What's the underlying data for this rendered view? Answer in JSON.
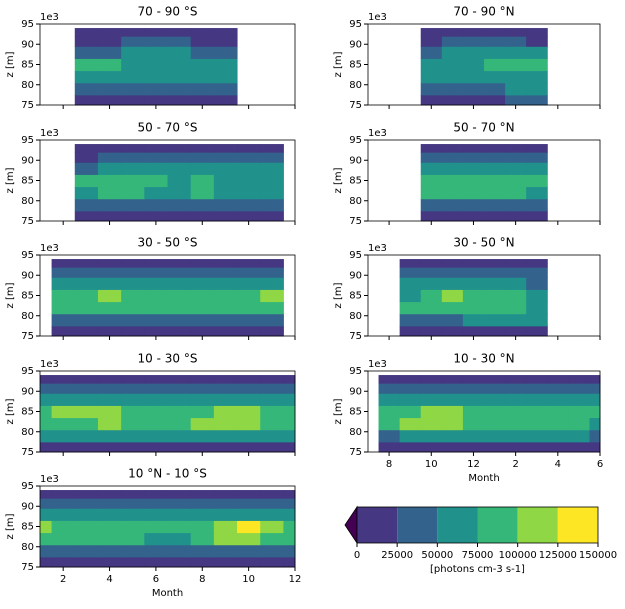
{
  "chart_data": [
    {
      "type": "contour",
      "title": "70 - 90 °S",
      "ylabel": "z [m]",
      "y_offset": "1e3",
      "xlim": [
        1,
        12
      ],
      "ylim": [
        75,
        95
      ],
      "xticks": [
        2,
        4,
        6,
        8,
        10,
        12
      ],
      "yticks": [
        75,
        80,
        85,
        90,
        95
      ],
      "x": [
        3,
        4,
        5,
        6,
        7,
        8,
        9
      ],
      "z": [
        76,
        79,
        82,
        85,
        88,
        91,
        93
      ],
      "values": [
        [
          10000,
          10000,
          10000,
          10000,
          10000,
          10000,
          10000
        ],
        [
          40000,
          40000,
          40000,
          40000,
          40000,
          40000,
          40000
        ],
        [
          60000,
          60000,
          60000,
          60000,
          60000,
          60000,
          60000
        ],
        [
          90000,
          90000,
          60000,
          60000,
          60000,
          60000,
          60000
        ],
        [
          40000,
          40000,
          60000,
          60000,
          60000,
          40000,
          40000
        ],
        [
          10000,
          10000,
          40000,
          40000,
          40000,
          10000,
          10000
        ],
        [
          10000,
          10000,
          10000,
          10000,
          10000,
          10000,
          10000
        ]
      ]
    },
    {
      "type": "contour",
      "title": "70 - 90 °N",
      "ylabel": "z [m]",
      "y_offset": "1e3",
      "xlim": [
        7,
        18
      ],
      "ylim": [
        75,
        95
      ],
      "xticks": [
        8,
        10,
        12,
        14,
        16,
        18
      ],
      "yticks": [
        75,
        80,
        85,
        90,
        95
      ],
      "x": [
        10,
        11,
        12,
        13,
        14,
        15
      ],
      "z": [
        76,
        79,
        82,
        85,
        88,
        91,
        93
      ],
      "values": [
        [
          10000,
          10000,
          10000,
          10000,
          40000,
          40000
        ],
        [
          40000,
          40000,
          40000,
          40000,
          60000,
          60000
        ],
        [
          60000,
          60000,
          60000,
          60000,
          60000,
          60000
        ],
        [
          60000,
          60000,
          60000,
          90000,
          90000,
          90000
        ],
        [
          40000,
          60000,
          60000,
          60000,
          60000,
          60000
        ],
        [
          10000,
          40000,
          40000,
          40000,
          40000,
          10000
        ],
        [
          10000,
          10000,
          10000,
          10000,
          10000,
          10000
        ]
      ]
    },
    {
      "type": "contour",
      "title": "50 - 70 °S",
      "ylabel": "z [m]",
      "y_offset": "1e3",
      "xlim": [
        1,
        12
      ],
      "ylim": [
        75,
        95
      ],
      "xticks": [
        2,
        4,
        6,
        8,
        10,
        12
      ],
      "yticks": [
        75,
        80,
        85,
        90,
        95
      ],
      "x": [
        3,
        4,
        5,
        6,
        7,
        8,
        9,
        10,
        11
      ],
      "z": [
        76,
        79,
        82,
        85,
        88,
        91,
        93
      ],
      "values": [
        [
          10000,
          10000,
          10000,
          10000,
          10000,
          10000,
          10000,
          10000,
          10000
        ],
        [
          40000,
          40000,
          40000,
          40000,
          40000,
          40000,
          40000,
          40000,
          40000
        ],
        [
          60000,
          90000,
          90000,
          60000,
          60000,
          90000,
          60000,
          60000,
          60000
        ],
        [
          90000,
          90000,
          90000,
          90000,
          60000,
          90000,
          60000,
          60000,
          60000
        ],
        [
          40000,
          60000,
          60000,
          60000,
          60000,
          60000,
          60000,
          60000,
          60000
        ],
        [
          10000,
          40000,
          40000,
          40000,
          40000,
          40000,
          40000,
          40000,
          40000
        ],
        [
          10000,
          10000,
          10000,
          10000,
          10000,
          10000,
          10000,
          10000,
          10000
        ]
      ]
    },
    {
      "type": "contour",
      "title": "50 - 70 °N",
      "ylabel": "z [m]",
      "y_offset": "1e3",
      "xlim": [
        7,
        18
      ],
      "ylim": [
        75,
        95
      ],
      "xticks": [
        8,
        10,
        12,
        14,
        16,
        18
      ],
      "yticks": [
        75,
        80,
        85,
        90,
        95
      ],
      "x": [
        10,
        11,
        12,
        13,
        14,
        15
      ],
      "z": [
        76,
        79,
        82,
        85,
        88,
        91,
        93
      ],
      "values": [
        [
          10000,
          10000,
          10000,
          10000,
          10000,
          10000
        ],
        [
          40000,
          40000,
          40000,
          40000,
          40000,
          40000
        ],
        [
          90000,
          90000,
          90000,
          90000,
          90000,
          60000
        ],
        [
          90000,
          90000,
          90000,
          90000,
          90000,
          90000
        ],
        [
          60000,
          60000,
          60000,
          60000,
          60000,
          60000
        ],
        [
          40000,
          40000,
          40000,
          40000,
          40000,
          40000
        ],
        [
          10000,
          10000,
          10000,
          10000,
          10000,
          10000
        ]
      ]
    },
    {
      "type": "contour",
      "title": "30 - 50 °S",
      "ylabel": "z [m]",
      "y_offset": "1e3",
      "xlim": [
        1,
        12
      ],
      "ylim": [
        75,
        95
      ],
      "xticks": [
        2,
        4,
        6,
        8,
        10,
        12
      ],
      "yticks": [
        75,
        80,
        85,
        90,
        95
      ],
      "x": [
        2,
        3,
        4,
        5,
        6,
        7,
        8,
        9,
        10,
        11
      ],
      "z": [
        76,
        79,
        82,
        85,
        88,
        91,
        93
      ],
      "values": [
        [
          10000,
          10000,
          10000,
          10000,
          10000,
          10000,
          10000,
          10000,
          10000,
          10000
        ],
        [
          40000,
          40000,
          40000,
          40000,
          40000,
          40000,
          40000,
          40000,
          40000,
          40000
        ],
        [
          90000,
          90000,
          90000,
          90000,
          90000,
          90000,
          90000,
          90000,
          90000,
          90000
        ],
        [
          90000,
          90000,
          110000,
          90000,
          90000,
          90000,
          90000,
          90000,
          90000,
          110000
        ],
        [
          60000,
          60000,
          60000,
          60000,
          60000,
          60000,
          60000,
          60000,
          60000,
          60000
        ],
        [
          40000,
          40000,
          40000,
          40000,
          40000,
          40000,
          40000,
          40000,
          40000,
          40000
        ],
        [
          10000,
          10000,
          10000,
          10000,
          10000,
          10000,
          10000,
          10000,
          10000,
          10000
        ]
      ]
    },
    {
      "type": "contour",
      "title": "30 - 50 °N",
      "ylabel": "z [m]",
      "y_offset": "1e3",
      "xlim": [
        7,
        18
      ],
      "ylim": [
        75,
        95
      ],
      "xticks": [
        8,
        10,
        12,
        14,
        16,
        18
      ],
      "yticks": [
        75,
        80,
        85,
        90,
        95
      ],
      "x": [
        9,
        10,
        11,
        12,
        13,
        14,
        15
      ],
      "z": [
        76,
        79,
        82,
        85,
        88,
        91,
        93
      ],
      "values": [
        [
          10000,
          10000,
          10000,
          10000,
          10000,
          10000,
          10000
        ],
        [
          40000,
          40000,
          40000,
          60000,
          60000,
          60000,
          60000
        ],
        [
          90000,
          90000,
          90000,
          90000,
          90000,
          90000,
          60000
        ],
        [
          60000,
          90000,
          110000,
          90000,
          90000,
          90000,
          60000
        ],
        [
          60000,
          60000,
          60000,
          60000,
          60000,
          60000,
          40000
        ],
        [
          40000,
          40000,
          40000,
          40000,
          40000,
          40000,
          40000
        ],
        [
          10000,
          10000,
          10000,
          10000,
          10000,
          10000,
          10000
        ]
      ]
    },
    {
      "type": "contour",
      "title": "10 - 30 °S",
      "ylabel": "z [m]",
      "y_offset": "1e3",
      "xlim": [
        1,
        12
      ],
      "ylim": [
        75,
        95
      ],
      "xticks": [
        2,
        4,
        6,
        8,
        10,
        12
      ],
      "yticks": [
        75,
        80,
        85,
        90,
        95
      ],
      "x": [
        1,
        2,
        3,
        4,
        5,
        6,
        7,
        8,
        9,
        10,
        11,
        12
      ],
      "z": [
        76,
        79,
        82,
        85,
        88,
        91,
        93
      ],
      "values": [
        [
          10000,
          10000,
          10000,
          10000,
          10000,
          10000,
          10000,
          10000,
          10000,
          10000,
          10000,
          10000
        ],
        [
          60000,
          60000,
          60000,
          60000,
          60000,
          60000,
          60000,
          60000,
          60000,
          60000,
          60000,
          60000
        ],
        [
          90000,
          90000,
          90000,
          110000,
          90000,
          90000,
          90000,
          110000,
          110000,
          110000,
          90000,
          90000
        ],
        [
          90000,
          110000,
          110000,
          110000,
          90000,
          90000,
          90000,
          90000,
          110000,
          110000,
          90000,
          90000
        ],
        [
          60000,
          60000,
          60000,
          60000,
          60000,
          60000,
          60000,
          60000,
          60000,
          60000,
          60000,
          60000
        ],
        [
          40000,
          40000,
          40000,
          40000,
          40000,
          40000,
          40000,
          40000,
          40000,
          40000,
          40000,
          40000
        ],
        [
          10000,
          10000,
          10000,
          10000,
          10000,
          10000,
          10000,
          10000,
          10000,
          10000,
          10000,
          10000
        ]
      ]
    },
    {
      "type": "contour",
      "title": "10 - 30 °N",
      "ylabel": "z [m]",
      "y_offset": "1e3",
      "xlabel": "Month",
      "xlim": [
        7,
        18
      ],
      "ylim": [
        75,
        95
      ],
      "xticks": [
        8,
        10,
        12,
        {
          "value": 14,
          "label": "2"
        },
        {
          "value": 16,
          "label": "4"
        },
        {
          "value": 18,
          "label": "6"
        }
      ],
      "yticks": [
        75,
        80,
        85,
        90,
        95
      ],
      "x": [
        8,
        9,
        10,
        11,
        12,
        13,
        14,
        15,
        16,
        17,
        18
      ],
      "z": [
        76,
        79,
        82,
        85,
        88,
        91,
        93
      ],
      "values": [
        [
          10000,
          10000,
          10000,
          10000,
          10000,
          10000,
          10000,
          10000,
          10000,
          10000,
          10000
        ],
        [
          40000,
          60000,
          60000,
          60000,
          60000,
          60000,
          60000,
          60000,
          60000,
          60000,
          40000
        ],
        [
          90000,
          110000,
          110000,
          110000,
          90000,
          90000,
          90000,
          90000,
          90000,
          90000,
          60000
        ],
        [
          90000,
          90000,
          110000,
          110000,
          90000,
          90000,
          90000,
          90000,
          90000,
          90000,
          90000
        ],
        [
          60000,
          60000,
          60000,
          60000,
          60000,
          60000,
          60000,
          60000,
          60000,
          60000,
          60000
        ],
        [
          40000,
          40000,
          40000,
          40000,
          40000,
          40000,
          40000,
          40000,
          40000,
          40000,
          40000
        ],
        [
          10000,
          10000,
          10000,
          10000,
          10000,
          10000,
          10000,
          10000,
          10000,
          10000,
          10000
        ]
      ]
    },
    {
      "type": "contour",
      "title": "10 °N - 10 °S",
      "ylabel": "z [m]",
      "y_offset": "1e3",
      "xlabel": "Month",
      "xlim": [
        1,
        12
      ],
      "ylim": [
        75,
        95
      ],
      "xticks": [
        2,
        4,
        6,
        8,
        10,
        12
      ],
      "yticks": [
        75,
        80,
        85,
        90,
        95
      ],
      "x": [
        1,
        2,
        3,
        4,
        5,
        6,
        7,
        8,
        9,
        10,
        11,
        12
      ],
      "z": [
        76,
        79,
        82,
        85,
        88,
        91,
        93
      ],
      "values": [
        [
          10000,
          10000,
          10000,
          10000,
          10000,
          10000,
          10000,
          10000,
          10000,
          10000,
          10000,
          10000
        ],
        [
          40000,
          40000,
          40000,
          40000,
          40000,
          40000,
          40000,
          40000,
          40000,
          40000,
          40000,
          40000
        ],
        [
          90000,
          90000,
          90000,
          90000,
          90000,
          60000,
          60000,
          90000,
          110000,
          110000,
          90000,
          90000
        ],
        [
          110000,
          90000,
          90000,
          90000,
          90000,
          90000,
          90000,
          90000,
          110000,
          135000,
          110000,
          90000
        ],
        [
          60000,
          60000,
          60000,
          60000,
          60000,
          60000,
          60000,
          60000,
          60000,
          60000,
          60000,
          60000
        ],
        [
          40000,
          40000,
          40000,
          40000,
          40000,
          40000,
          40000,
          40000,
          40000,
          40000,
          40000,
          40000
        ],
        [
          10000,
          10000,
          10000,
          10000,
          10000,
          10000,
          10000,
          10000,
          10000,
          10000,
          10000,
          10000
        ]
      ]
    },
    {
      "type": "colorbar",
      "xlabel": "[photons cm-3 s-1]",
      "levels": [
        0,
        25000,
        50000,
        75000,
        100000,
        125000,
        150000
      ],
      "colors": [
        "#453781",
        "#33638d",
        "#21918c",
        "#35b779",
        "#8fd744",
        "#fde725"
      ],
      "under_color": "#440154"
    }
  ]
}
